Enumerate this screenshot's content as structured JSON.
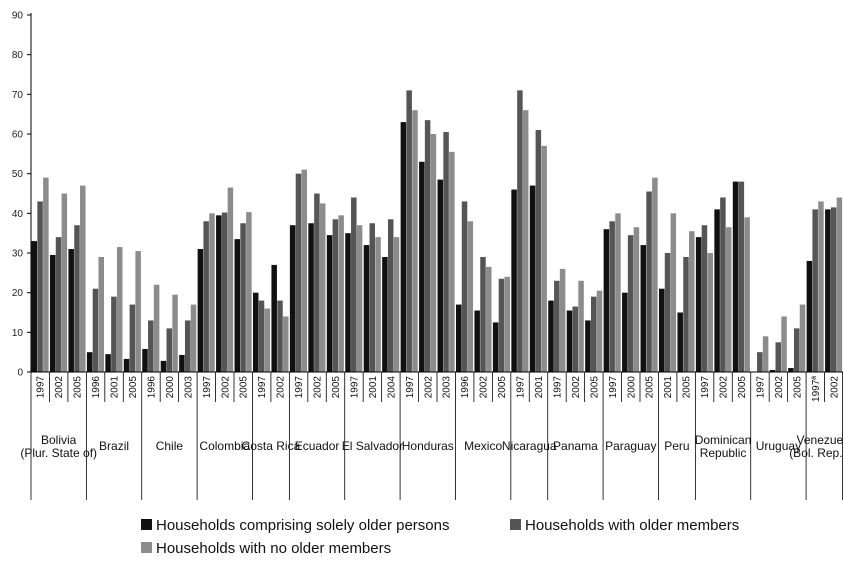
{
  "chart_data": {
    "type": "bar",
    "ylim": [
      0,
      90
    ],
    "yticks": [
      0,
      10,
      20,
      30,
      40,
      50,
      60,
      70,
      80,
      90
    ],
    "legend_position": "bottom",
    "series": [
      {
        "name": "Households comprising solely older persons",
        "color": "#111111"
      },
      {
        "name": "Households with older members",
        "color": "#555555"
      },
      {
        "name": "Households with no older members",
        "color": "#8c8c8c"
      }
    ],
    "groups": [
      {
        "country": "Bolivia\n(Plur. State of)",
        "years": [
          {
            "year": "1997",
            "values": [
              33,
              43,
              49
            ]
          },
          {
            "year": "2002",
            "values": [
              29.5,
              34,
              45
            ]
          },
          {
            "year": "2005",
            "values": [
              31,
              37,
              47
            ]
          }
        ]
      },
      {
        "country": "Brazil",
        "years": [
          {
            "year": "1996",
            "values": [
              5,
              21,
              29
            ]
          },
          {
            "year": "2001",
            "values": [
              4.5,
              19,
              31.5
            ]
          },
          {
            "year": "2005",
            "values": [
              3.3,
              17,
              30.5
            ]
          }
        ]
      },
      {
        "country": "Chile",
        "years": [
          {
            "year": "1996",
            "values": [
              5.8,
              13,
              22
            ]
          },
          {
            "year": "2000",
            "values": [
              2.8,
              11,
              19.5
            ]
          },
          {
            "year": "2003",
            "values": [
              4.3,
              13,
              17
            ]
          }
        ]
      },
      {
        "country": "Colombia",
        "years": [
          {
            "year": "1997",
            "values": [
              31,
              38,
              40
            ]
          },
          {
            "year": "2002",
            "values": [
              39.5,
              40.2,
              46.5
            ]
          },
          {
            "year": "2005",
            "values": [
              33.5,
              37.5,
              40.3
            ]
          }
        ]
      },
      {
        "country": "Costa Rica",
        "years": [
          {
            "year": "1997",
            "values": [
              20,
              18,
              16
            ]
          },
          {
            "year": "2002",
            "values": [
              27,
              18,
              14
            ]
          }
        ]
      },
      {
        "country": "Ecuador",
        "years": [
          {
            "year": "1997",
            "values": [
              37,
              50,
              51
            ]
          },
          {
            "year": "2002",
            "values": [
              37.5,
              45,
              42.5
            ]
          },
          {
            "year": "2005",
            "values": [
              34.5,
              38.5,
              39.5
            ]
          }
        ]
      },
      {
        "country": "El Salvador",
        "years": [
          {
            "year": "1997",
            "values": [
              35,
              44,
              37
            ]
          },
          {
            "year": "2001",
            "values": [
              32,
              37.5,
              34
            ]
          },
          {
            "year": "2004",
            "values": [
              29,
              38.5,
              34
            ]
          }
        ]
      },
      {
        "country": "Honduras",
        "years": [
          {
            "year": "1997",
            "values": [
              63,
              71,
              66
            ]
          },
          {
            "year": "2002",
            "values": [
              53,
              63.5,
              60
            ]
          },
          {
            "year": "2003",
            "values": [
              48.5,
              60.5,
              55.5
            ]
          }
        ]
      },
      {
        "country": "Mexico",
        "years": [
          {
            "year": "1996",
            "values": [
              17,
              43,
              38
            ]
          },
          {
            "year": "2002",
            "values": [
              15.5,
              29,
              26.5
            ]
          },
          {
            "year": "2005",
            "values": [
              12.5,
              23.5,
              24
            ]
          }
        ]
      },
      {
        "country": "Nicaragua",
        "years": [
          {
            "year": "1997",
            "values": [
              46,
              71,
              66
            ]
          },
          {
            "year": "2001",
            "values": [
              47,
              61,
              57
            ]
          }
        ]
      },
      {
        "country": "Panama",
        "years": [
          {
            "year": "1997",
            "values": [
              18,
              23,
              26
            ]
          },
          {
            "year": "2002",
            "values": [
              15.5,
              16.5,
              23
            ]
          },
          {
            "year": "2005",
            "values": [
              13,
              19,
              20.5
            ]
          }
        ]
      },
      {
        "country": "Paraguay",
        "years": [
          {
            "year": "1997",
            "values": [
              36,
              38,
              40
            ]
          },
          {
            "year": "2000",
            "values": [
              20,
              34.5,
              36.5
            ]
          },
          {
            "year": "2005",
            "values": [
              32,
              45.5,
              49
            ]
          }
        ]
      },
      {
        "country": "Peru",
        "years": [
          {
            "year": "2001",
            "values": [
              21,
              30,
              40
            ]
          },
          {
            "year": "2005",
            "values": [
              15,
              29,
              35.5
            ]
          }
        ]
      },
      {
        "country": "Dominican\nRepublic",
        "years": [
          {
            "year": "1997",
            "values": [
              34,
              37,
              30
            ]
          },
          {
            "year": "2002",
            "values": [
              41,
              44,
              36.5
            ]
          },
          {
            "year": "2005",
            "values": [
              48,
              48,
              39
            ]
          }
        ]
      },
      {
        "country": "Uruguay",
        "years": [
          {
            "year": "1997",
            "values": [
              0,
              5,
              9
            ]
          },
          {
            "year": "2002",
            "values": [
              0.5,
              7.5,
              14
            ]
          },
          {
            "year": "2005",
            "values": [
              1,
              11,
              17
            ]
          }
        ]
      },
      {
        "country": "Venezuela\n(Bol. Rep. of)",
        "years": [
          {
            "year": "1997ª",
            "values": [
              28,
              41,
              43
            ]
          },
          {
            "year": "2002",
            "values": [
              41,
              41.5,
              44
            ]
          }
        ]
      }
    ]
  }
}
